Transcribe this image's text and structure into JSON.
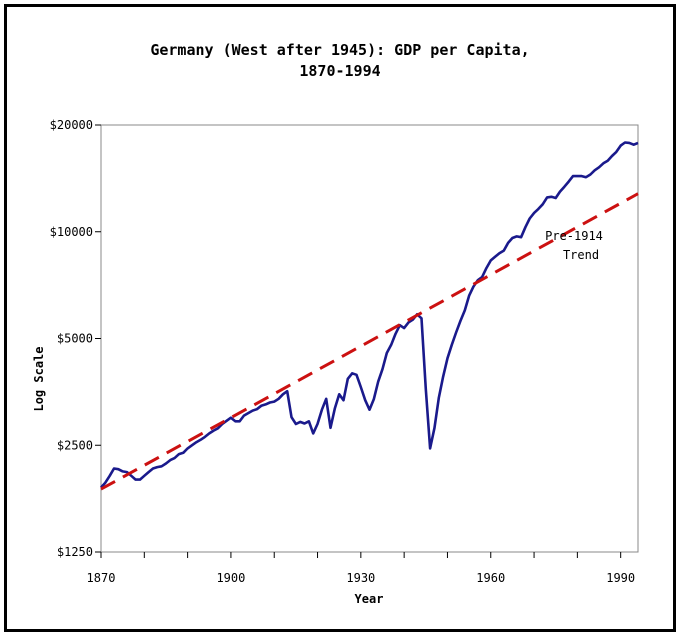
{
  "chart_data": {
    "type": "line",
    "title": [
      "Germany (West after 1945): GDP per Capita,",
      "1870-1994"
    ],
    "xlabel": "Year",
    "ylabel": "Log Scale",
    "xlim": [
      1870,
      1994
    ],
    "ylim": [
      1250,
      20000
    ],
    "yscale": "log",
    "x_ticks": [
      1870,
      1900,
      1930,
      1960,
      1990
    ],
    "x_minor_ticks": [
      1880,
      1890,
      1910,
      1920,
      1940,
      1950,
      1970,
      1980
    ],
    "y_ticks": [
      {
        "value": 1250,
        "label": "$1250"
      },
      {
        "value": 2500,
        "label": "$2500"
      },
      {
        "value": 5000,
        "label": "$5000"
      },
      {
        "value": 10000,
        "label": "$10000"
      },
      {
        "value": 20000,
        "label": "$20000"
      }
    ],
    "grid": false,
    "annotations": [
      {
        "lines": [
          "Pre-1914",
          "Trend"
        ]
      }
    ],
    "series": [
      {
        "style": "solid",
        "color": "#1a1a8c",
        "x": [
          1870,
          1871,
          1872,
          1873,
          1874,
          1875,
          1876,
          1877,
          1878,
          1879,
          1880,
          1881,
          1882,
          1883,
          1884,
          1885,
          1886,
          1887,
          1888,
          1889,
          1890,
          1891,
          1892,
          1893,
          1894,
          1895,
          1896,
          1897,
          1898,
          1899,
          1900,
          1901,
          1902,
          1903,
          1904,
          1905,
          1906,
          1907,
          1908,
          1909,
          1910,
          1911,
          1912,
          1913,
          1914,
          1915,
          1916,
          1917,
          1918,
          1919,
          1920,
          1921,
          1922,
          1923,
          1924,
          1925,
          1926,
          1927,
          1928,
          1929,
          1930,
          1931,
          1932,
          1933,
          1934,
          1935,
          1936,
          1937,
          1938,
          1939,
          1940,
          1941,
          1942,
          1943,
          1944,
          1945,
          1946,
          1947,
          1948,
          1949,
          1950,
          1951,
          1952,
          1953,
          1954,
          1955,
          1956,
          1957,
          1958,
          1959,
          1960,
          1961,
          1962,
          1963,
          1964,
          1965,
          1966,
          1967,
          1968,
          1969,
          1970,
          1971,
          1972,
          1973,
          1974,
          1975,
          1976,
          1977,
          1978,
          1979,
          1980,
          1981,
          1982,
          1983,
          1984,
          1985,
          1986,
          1987,
          1988,
          1989,
          1990,
          1991,
          1992,
          1993,
          1994
        ],
        "y": [
          1900,
          1960,
          2050,
          2150,
          2140,
          2110,
          2100,
          2050,
          2000,
          2000,
          2050,
          2100,
          2150,
          2170,
          2180,
          2220,
          2270,
          2300,
          2360,
          2380,
          2450,
          2500,
          2550,
          2590,
          2640,
          2700,
          2750,
          2790,
          2870,
          2930,
          2990,
          2920,
          2920,
          3030,
          3080,
          3130,
          3160,
          3230,
          3260,
          3300,
          3320,
          3380,
          3480,
          3550,
          3000,
          2870,
          2910,
          2880,
          2920,
          2700,
          2870,
          3150,
          3380,
          2800,
          3180,
          3480,
          3350,
          3850,
          3990,
          3950,
          3650,
          3350,
          3150,
          3370,
          3780,
          4100,
          4550,
          4800,
          5150,
          5450,
          5350,
          5550,
          5650,
          5850,
          5700,
          3600,
          2450,
          2800,
          3400,
          3900,
          4400,
          4800,
          5200,
          5600,
          6000,
          6600,
          7000,
          7300,
          7450,
          7900,
          8300,
          8500,
          8700,
          8850,
          9300,
          9600,
          9700,
          9650,
          10300,
          10900,
          11300,
          11600,
          11950,
          12500,
          12550,
          12450,
          12980,
          13400,
          13850,
          14350,
          14350,
          14350,
          14250,
          14500,
          14900,
          15200,
          15600,
          15850,
          16350,
          16800,
          17500,
          17850,
          17800,
          17600,
          17800
        ]
      },
      {
        "style": "dashed",
        "color": "#cc1111",
        "x": [
          1870,
          1994
        ],
        "y": [
          1880,
          12800
        ]
      }
    ]
  }
}
